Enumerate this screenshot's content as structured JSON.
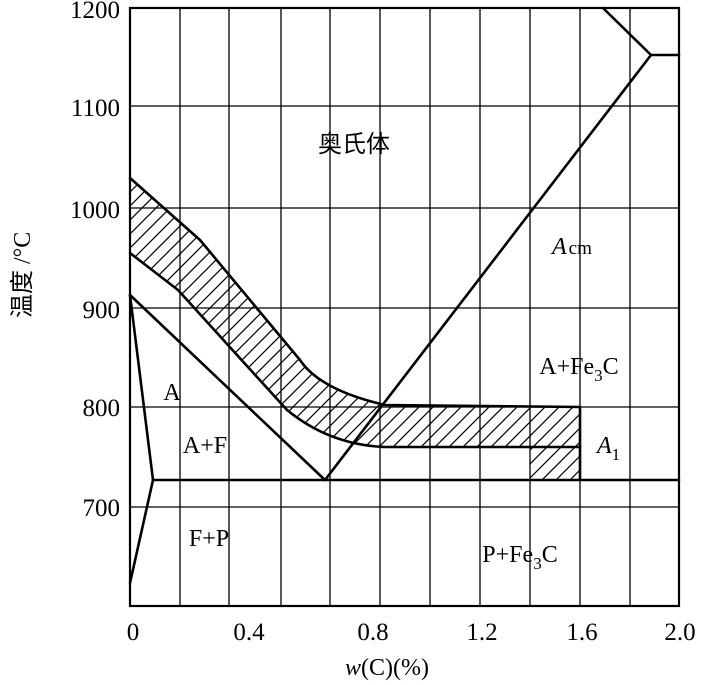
{
  "diagram": {
    "x_axis": {
      "title_var": "w",
      "title_rest": "(C)(%)",
      "ticks": [
        "0",
        "0.4",
        "0.8",
        "1.2",
        "1.6",
        "2.0"
      ]
    },
    "y_axis": {
      "title": "温度 /°C",
      "ticks": [
        "1200",
        "1100",
        "1000",
        "900",
        "800",
        "700"
      ]
    },
    "regions": {
      "austenite": "奥氏体",
      "acm_main": "A",
      "acm_sub": "cm",
      "a_fe3c_left": "A+Fe",
      "a_fe3c_sub": "3",
      "a_fe3c_right": "C",
      "a": "A",
      "a1_main": "A",
      "a1_sub": "1",
      "a_f": "A+F",
      "f_p": "F+P",
      "p_fe3c_left": "P+Fe",
      "p_fe3c_sub": "3",
      "p_fe3c_right": "C"
    }
  }
}
